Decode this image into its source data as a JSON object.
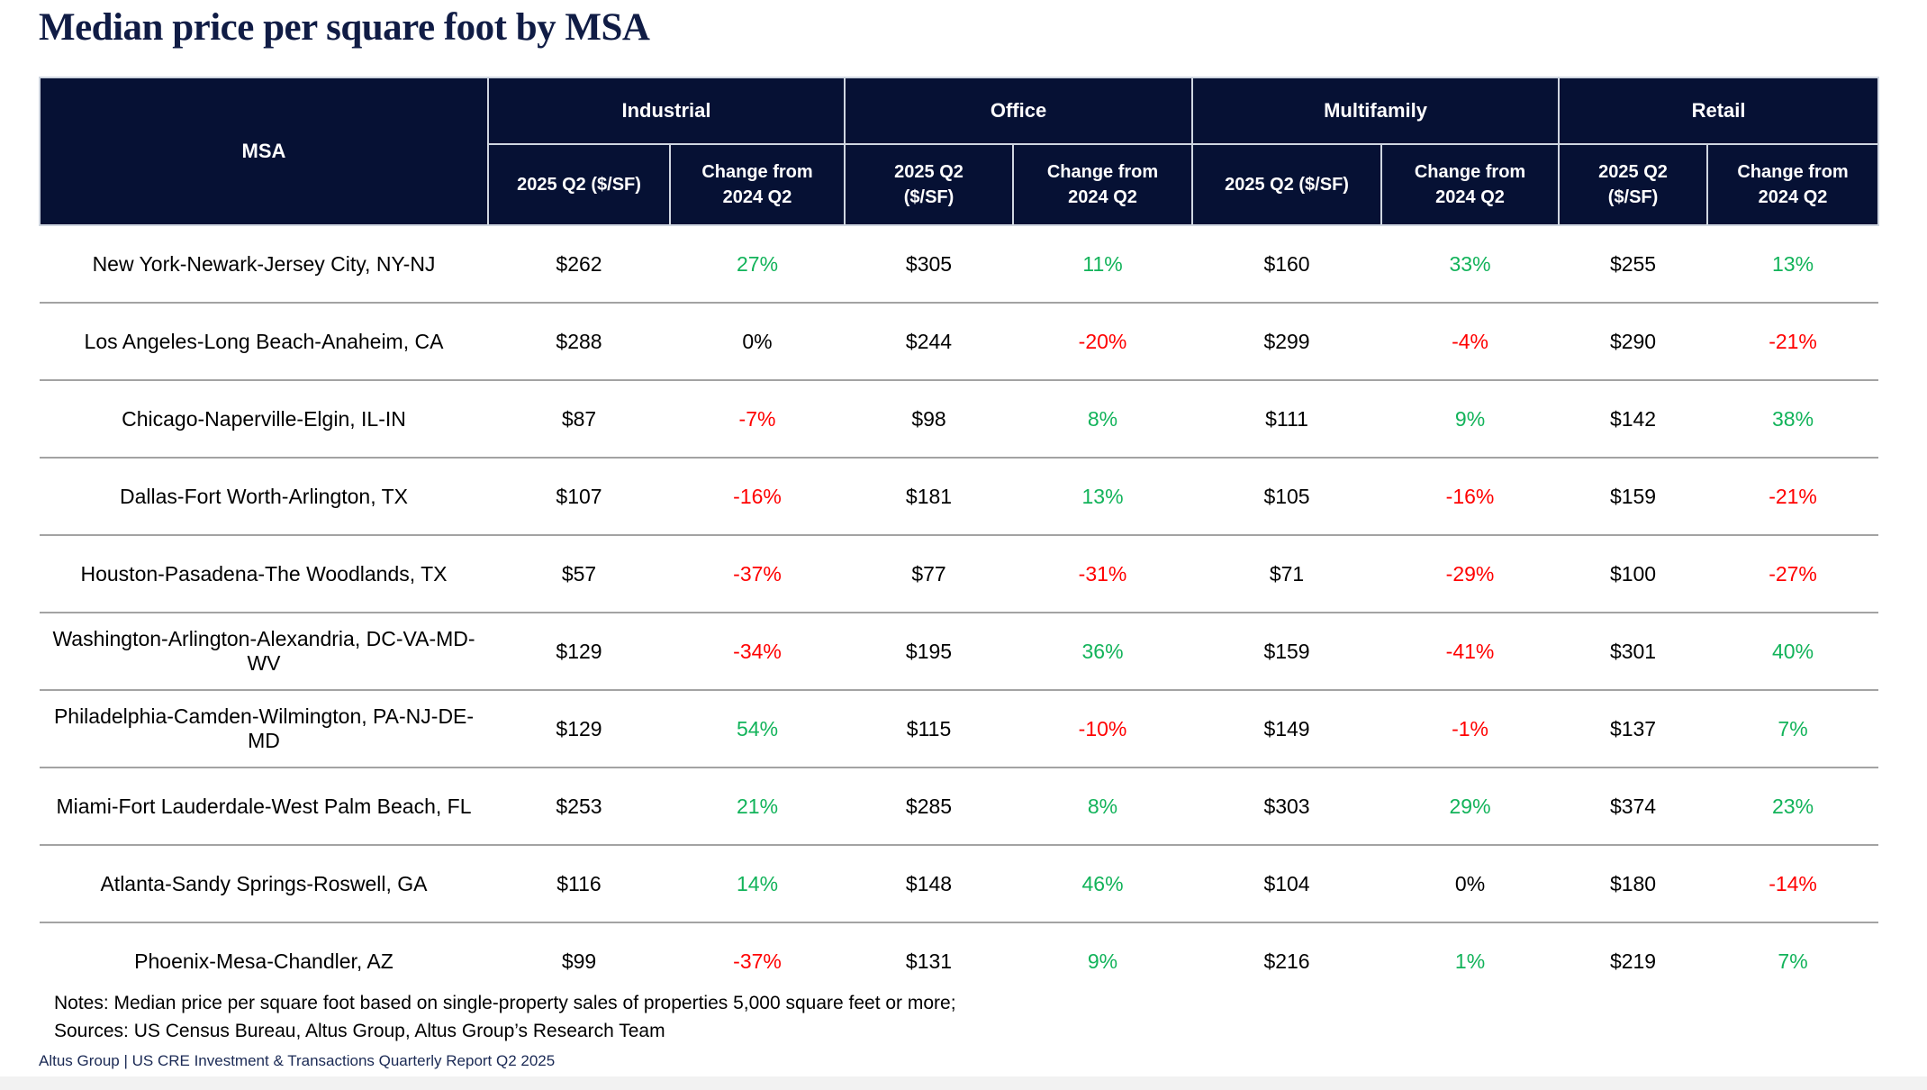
{
  "title": "Median price per square foot by MSA",
  "colors": {
    "header_bg": "#061134",
    "title_navy": "#101c45",
    "positive_change": "#12b35a",
    "negative_change": "#ff0000",
    "zero_change": "#000000"
  },
  "table": {
    "msa_header": "MSA",
    "groups": [
      {
        "label": "Industrial"
      },
      {
        "label": "Office"
      },
      {
        "label": "Multifamily"
      },
      {
        "label": "Retail"
      }
    ],
    "price_header": "2025 Q2 ($/SF)",
    "change_header": "Change from 2024 Q2",
    "rows": [
      {
        "msa": "New York-Newark-Jersey City, NY-NJ",
        "industrial": {
          "price": "$262",
          "change": "27%"
        },
        "office": {
          "price": "$305",
          "change": "11%"
        },
        "multifamily": {
          "price": "$160",
          "change": "33%"
        },
        "retail": {
          "price": "$255",
          "change": "13%"
        }
      },
      {
        "msa": "Los Angeles-Long Beach-Anaheim, CA",
        "industrial": {
          "price": "$288",
          "change": "0%"
        },
        "office": {
          "price": "$244",
          "change": "-20%"
        },
        "multifamily": {
          "price": "$299",
          "change": "-4%"
        },
        "retail": {
          "price": "$290",
          "change": "-21%"
        }
      },
      {
        "msa": "Chicago-Naperville-Elgin, IL-IN",
        "industrial": {
          "price": "$87",
          "change": "-7%"
        },
        "office": {
          "price": "$98",
          "change": "8%"
        },
        "multifamily": {
          "price": "$111",
          "change": "9%"
        },
        "retail": {
          "price": "$142",
          "change": "38%"
        }
      },
      {
        "msa": "Dallas-Fort Worth-Arlington, TX",
        "industrial": {
          "price": "$107",
          "change": "-16%"
        },
        "office": {
          "price": "$181",
          "change": "13%"
        },
        "multifamily": {
          "price": "$105",
          "change": "-16%"
        },
        "retail": {
          "price": "$159",
          "change": "-21%"
        }
      },
      {
        "msa": "Houston-Pasadena-The Woodlands, TX",
        "industrial": {
          "price": "$57",
          "change": "-37%"
        },
        "office": {
          "price": "$77",
          "change": "-31%"
        },
        "multifamily": {
          "price": "$71",
          "change": "-29%"
        },
        "retail": {
          "price": "$100",
          "change": "-27%"
        }
      },
      {
        "msa": "Washington-Arlington-Alexandria, DC-VA-MD-WV",
        "industrial": {
          "price": "$129",
          "change": "-34%"
        },
        "office": {
          "price": "$195",
          "change": "36%"
        },
        "multifamily": {
          "price": "$159",
          "change": "-41%"
        },
        "retail": {
          "price": "$301",
          "change": "40%"
        }
      },
      {
        "msa": "Philadelphia-Camden-Wilmington, PA-NJ-DE-MD",
        "industrial": {
          "price": "$129",
          "change": "54%"
        },
        "office": {
          "price": "$115",
          "change": "-10%"
        },
        "multifamily": {
          "price": "$149",
          "change": "-1%"
        },
        "retail": {
          "price": "$137",
          "change": "7%"
        }
      },
      {
        "msa": "Miami-Fort Lauderdale-West Palm Beach, FL",
        "industrial": {
          "price": "$253",
          "change": "21%"
        },
        "office": {
          "price": "$285",
          "change": "8%"
        },
        "multifamily": {
          "price": "$303",
          "change": "29%"
        },
        "retail": {
          "price": "$374",
          "change": "23%"
        }
      },
      {
        "msa": "Atlanta-Sandy Springs-Roswell, GA",
        "industrial": {
          "price": "$116",
          "change": "14%"
        },
        "office": {
          "price": "$148",
          "change": "46%"
        },
        "multifamily": {
          "price": "$104",
          "change": "0%"
        },
        "retail": {
          "price": "$180",
          "change": "-14%"
        }
      },
      {
        "msa": "Phoenix-Mesa-Chandler, AZ",
        "industrial": {
          "price": "$99",
          "change": "-37%"
        },
        "office": {
          "price": "$131",
          "change": "9%"
        },
        "multifamily": {
          "price": "$216",
          "change": "1%"
        },
        "retail": {
          "price": "$219",
          "change": "7%"
        }
      }
    ]
  },
  "notes": "Notes: Median price per square foot based on single-property sales of properties 5,000 square feet or more;",
  "sources": "Sources: US Census Bureau, Altus Group, Altus Group’s Research Team",
  "footer": "Altus Group  |  US CRE Investment & Transactions Quarterly Report Q2 2025"
}
